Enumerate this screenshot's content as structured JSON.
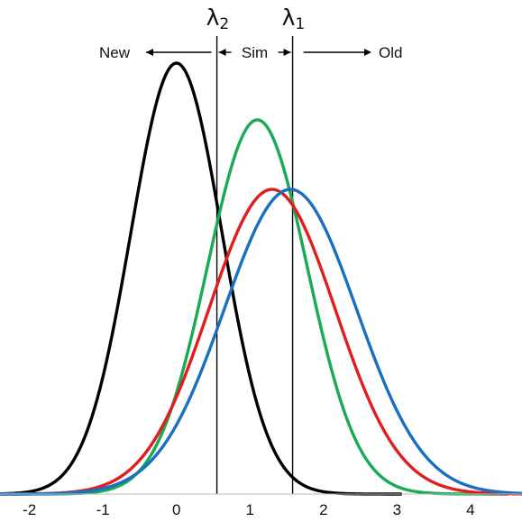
{
  "chart_data": {
    "type": "line",
    "title": "",
    "xlabel": "",
    "ylabel": "",
    "xlim": [
      -2.4,
      4.7
    ],
    "ylim": [
      0,
      1.0
    ],
    "x_ticks": [
      -2,
      -1,
      0,
      1,
      2,
      3,
      4
    ],
    "x_tick_labels": [
      "-2",
      "-1",
      "0",
      "1",
      "2",
      "3",
      "4"
    ],
    "grid": false,
    "legend": "none",
    "series": [
      {
        "color": "#000000",
        "mean": 0.0,
        "sd": 0.62,
        "peak": 0.942,
        "x_range": [
          -2.45,
          3.05
        ]
      },
      {
        "color": "#1aaa55",
        "mean": 1.1,
        "sd": 0.68,
        "peak": 0.818,
        "x_range": [
          -2.45,
          4.5
        ]
      },
      {
        "color": "#e01e1e",
        "mean": 1.3,
        "sd": 0.86,
        "peak": 0.666,
        "x_range": [
          -2.45,
          4.8
        ]
      },
      {
        "color": "#1a6fc0",
        "mean": 1.55,
        "sd": 0.9,
        "peak": 0.666,
        "x_range": [
          -2.45,
          4.8
        ]
      }
    ],
    "thresholds": [
      {
        "x": 0.55,
        "symbol": "λ",
        "subscript": "2"
      },
      {
        "x": 1.58,
        "symbol": "λ",
        "subscript": "1"
      }
    ],
    "regions": {
      "new": "New",
      "sim": "Sim",
      "old": "Old"
    }
  }
}
